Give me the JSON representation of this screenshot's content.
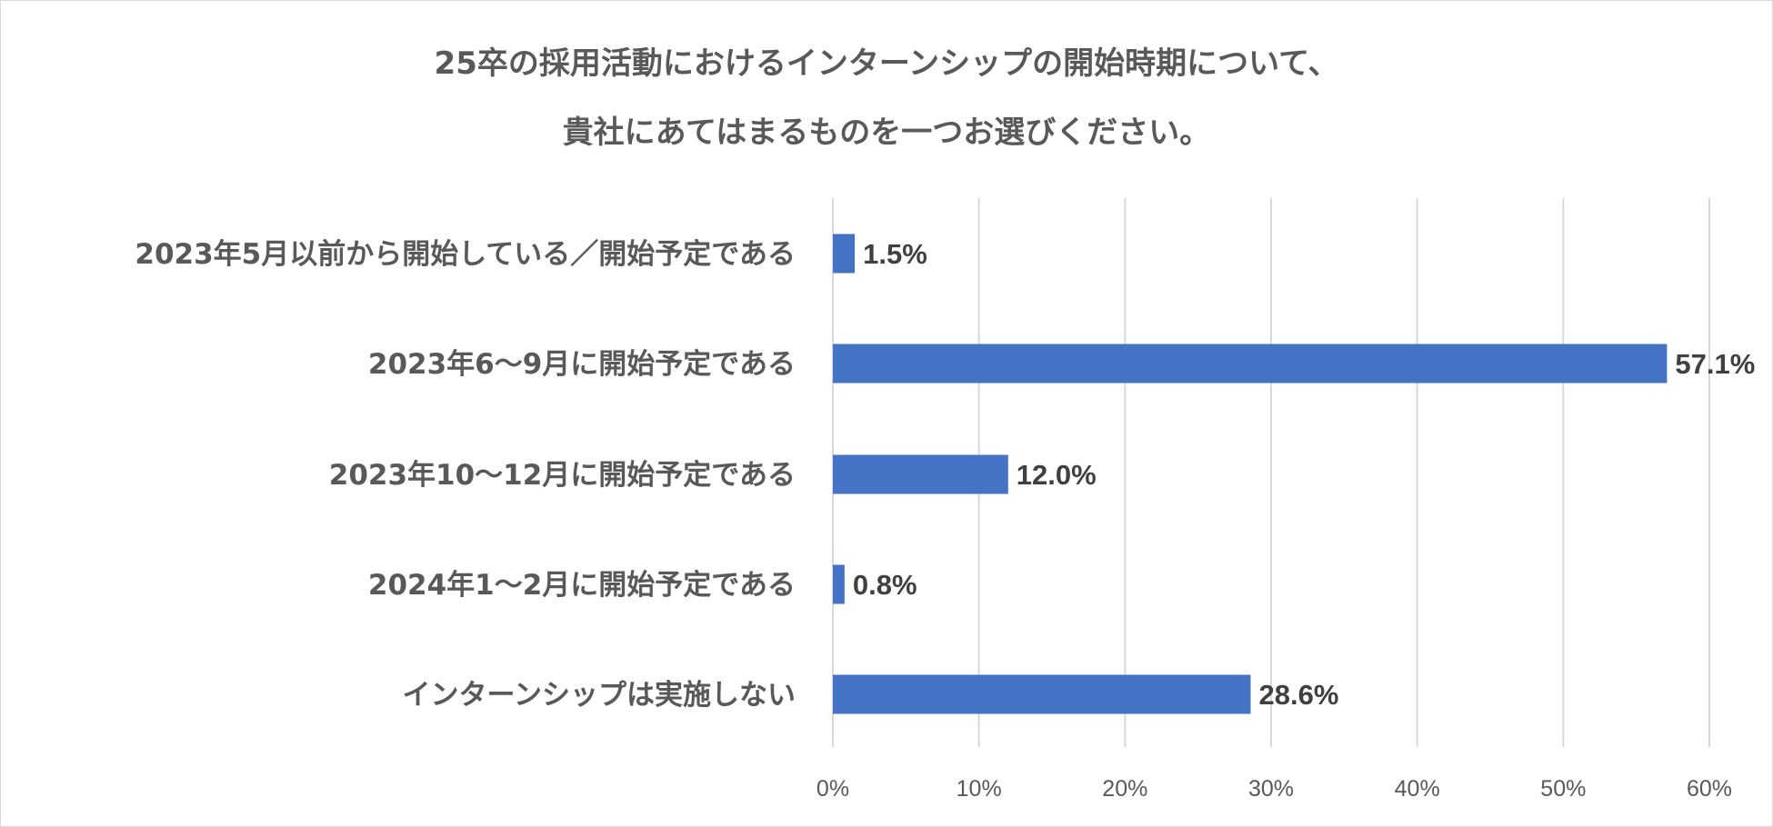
{
  "colors": {
    "bar": "#4472C4",
    "grid": "#d9d9d9",
    "text": "#595959",
    "value_text": "#404040"
  },
  "chart_data": {
    "type": "bar",
    "orientation": "horizontal",
    "title_lines": [
      "25卒の採用活動におけるインターンシップの開始時期について、",
      "貴社にあてはまるものを一つお選びください。"
    ],
    "categories": [
      "2023年5月以前から開始している／開始予定である",
      "2023年6〜9月に開始予定である",
      "2023年10〜12月に開始予定である",
      "2024年1〜2月に開始予定である",
      "インターンシップは実施しない"
    ],
    "values": [
      1.5,
      57.1,
      12.0,
      0.8,
      28.6
    ],
    "value_labels": [
      "1.5%",
      "57.1%",
      "12.0%",
      "0.8%",
      "28.6%"
    ],
    "xlim": [
      0,
      60
    ],
    "x_ticks": [
      0,
      10,
      20,
      30,
      40,
      50,
      60
    ],
    "x_tick_labels": [
      "0%",
      "10%",
      "20%",
      "30%",
      "40%",
      "50%",
      "60%"
    ],
    "grid": true,
    "legend": "none"
  }
}
